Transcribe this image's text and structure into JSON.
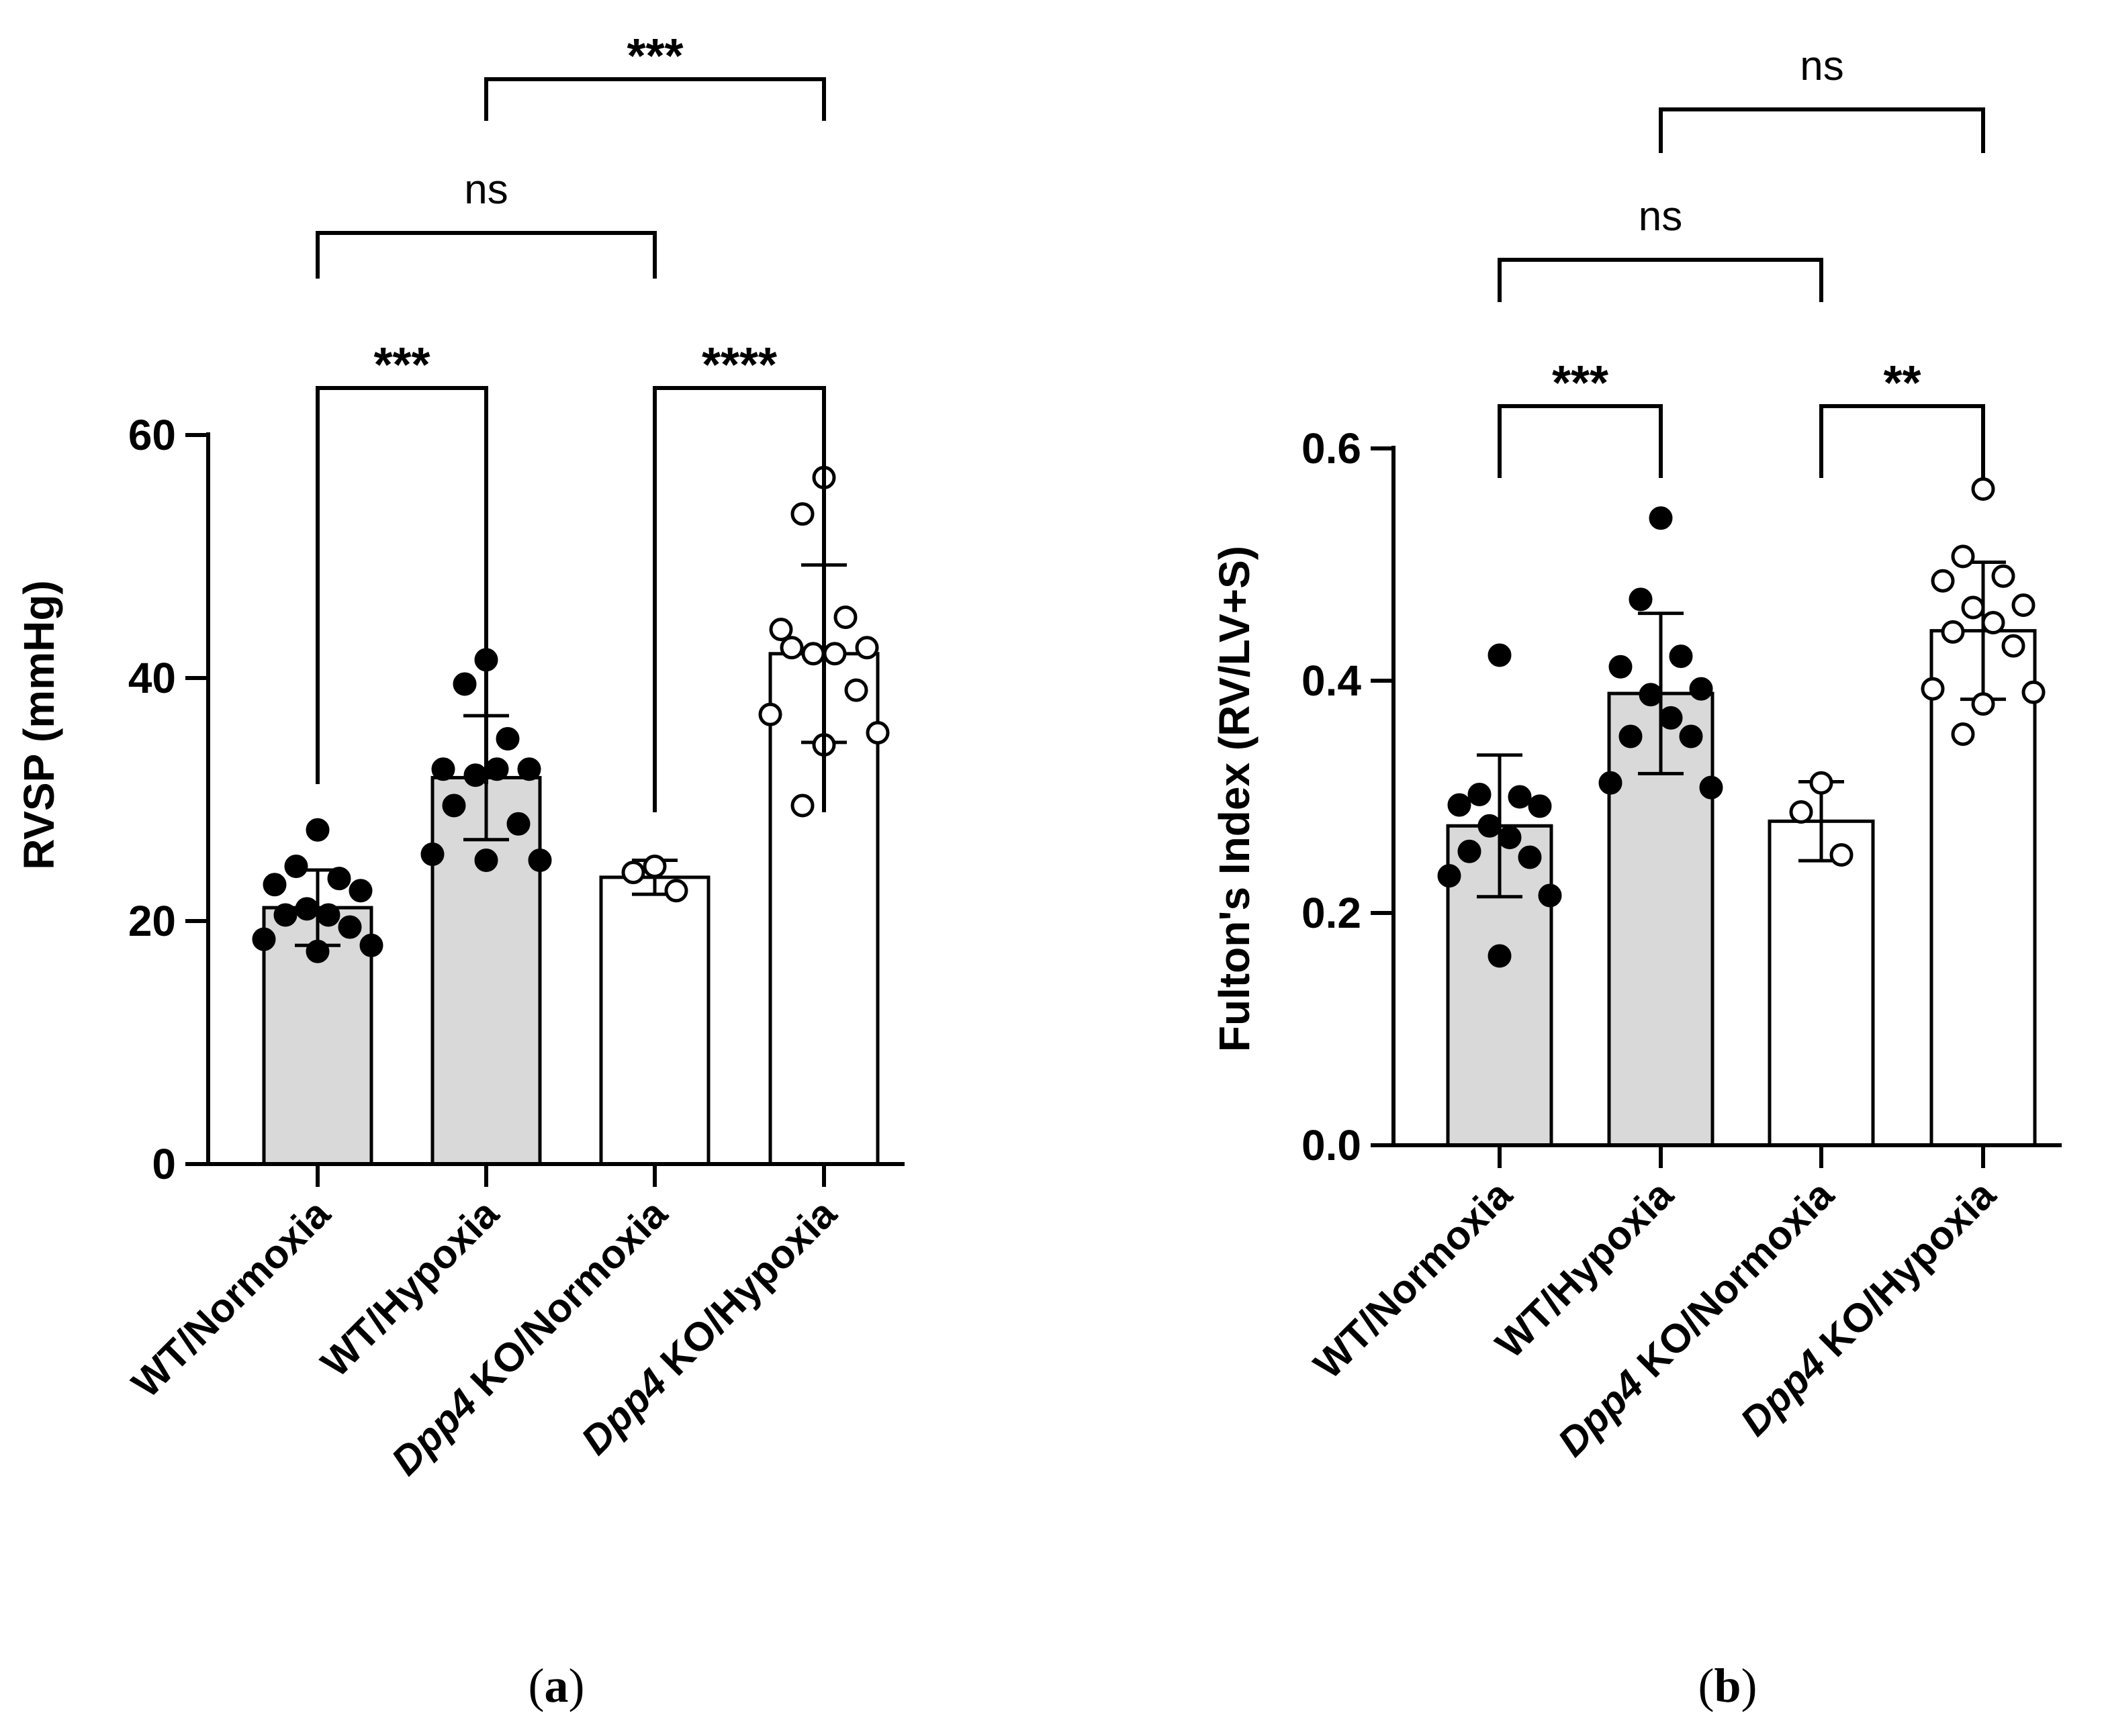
{
  "chart_data": [
    {
      "panel_label": "(a)",
      "panel_letter": "a",
      "type": "bar",
      "ylabel": "RVSP (mmHg)",
      "ylim": [
        0,
        60
      ],
      "yticks": [
        0,
        20,
        40,
        60
      ],
      "categories": [
        {
          "prefix": "",
          "text": "WT/Normoxia"
        },
        {
          "prefix": "",
          "text": "WT/Hypoxia"
        },
        {
          "prefix": "Dpp4",
          "text": " KO/Normoxia"
        },
        {
          "prefix": "Dpp4",
          "text": " KO/Hypoxia"
        }
      ],
      "bar_colors": [
        "#d9d9d9",
        "#d9d9d9",
        "#ffffff",
        "#ffffff"
      ],
      "means": [
        21.1,
        31.8,
        23.6,
        42.0
      ],
      "sd": [
        3.1,
        5.1,
        1.4,
        7.3
      ],
      "points": [
        {
          "group": 0,
          "filled": true,
          "values": [
            27.5,
            24.5,
            23.5,
            23.0,
            22.5,
            21.0,
            20.5,
            20.5,
            19.5,
            18.5,
            18.0,
            17.5
          ]
        },
        {
          "group": 1,
          "filled": true,
          "values": [
            41.5,
            39.5,
            35.0,
            32.5,
            32.5,
            32.0,
            32.5,
            29.5,
            28.0,
            25.5,
            25.0,
            25.0
          ]
        },
        {
          "group": 2,
          "filled": false,
          "values": [
            24.5,
            24.0,
            22.5
          ]
        },
        {
          "group": 3,
          "filled": false,
          "values": [
            56.5,
            53.5,
            45.0,
            44.0,
            42.5,
            42.0,
            42.0,
            42.5,
            39.0,
            37.0,
            35.5,
            34.5,
            29.5
          ]
        }
      ],
      "comparisons": [
        {
          "from": 0,
          "to": 1,
          "label": "***"
        },
        {
          "from": 2,
          "to": 3,
          "label": "****"
        },
        {
          "from": 0,
          "to": 2,
          "label": "ns"
        },
        {
          "from": 1,
          "to": 3,
          "label": "***"
        }
      ]
    },
    {
      "panel_label": "(b)",
      "panel_letter": "b",
      "type": "bar",
      "ylabel": "Fulton's Index (RV/LV+S)",
      "ylim": [
        0,
        0.6
      ],
      "yticks": [
        0.0,
        0.2,
        0.4,
        0.6
      ],
      "categories": [
        {
          "prefix": "",
          "text": "WT/Normoxia"
        },
        {
          "prefix": "",
          "text": "WT/Hypoxia"
        },
        {
          "prefix": "Dpp4",
          "text": " KO/Normoxia"
        },
        {
          "prefix": "Dpp4",
          "text": " KO/Hypoxia"
        }
      ],
      "bar_colors": [
        "#d9d9d9",
        "#d9d9d9",
        "#ffffff",
        "#ffffff"
      ],
      "means": [
        0.275,
        0.389,
        0.279,
        0.443
      ],
      "sd": [
        0.061,
        0.069,
        0.034,
        0.059
      ],
      "points": [
        {
          "group": 0,
          "filled": true,
          "values": [
            0.422,
            0.302,
            0.3,
            0.293,
            0.292,
            0.275,
            0.265,
            0.253,
            0.248,
            0.232,
            0.215,
            0.163
          ]
        },
        {
          "group": 1,
          "filled": true,
          "values": [
            0.54,
            0.47,
            0.421,
            0.412,
            0.393,
            0.388,
            0.368,
            0.352,
            0.352,
            0.312,
            0.308
          ]
        },
        {
          "group": 2,
          "filled": false,
          "values": [
            0.312,
            0.287,
            0.25
          ]
        },
        {
          "group": 3,
          "filled": false,
          "values": [
            0.565,
            0.507,
            0.49,
            0.486,
            0.465,
            0.463,
            0.45,
            0.442,
            0.43,
            0.393,
            0.39,
            0.38,
            0.354
          ]
        }
      ],
      "comparisons": [
        {
          "from": 0,
          "to": 1,
          "label": "***"
        },
        {
          "from": 2,
          "to": 3,
          "label": "**"
        },
        {
          "from": 0,
          "to": 2,
          "label": "ns"
        },
        {
          "from": 1,
          "to": 3,
          "label": "ns"
        }
      ]
    }
  ]
}
